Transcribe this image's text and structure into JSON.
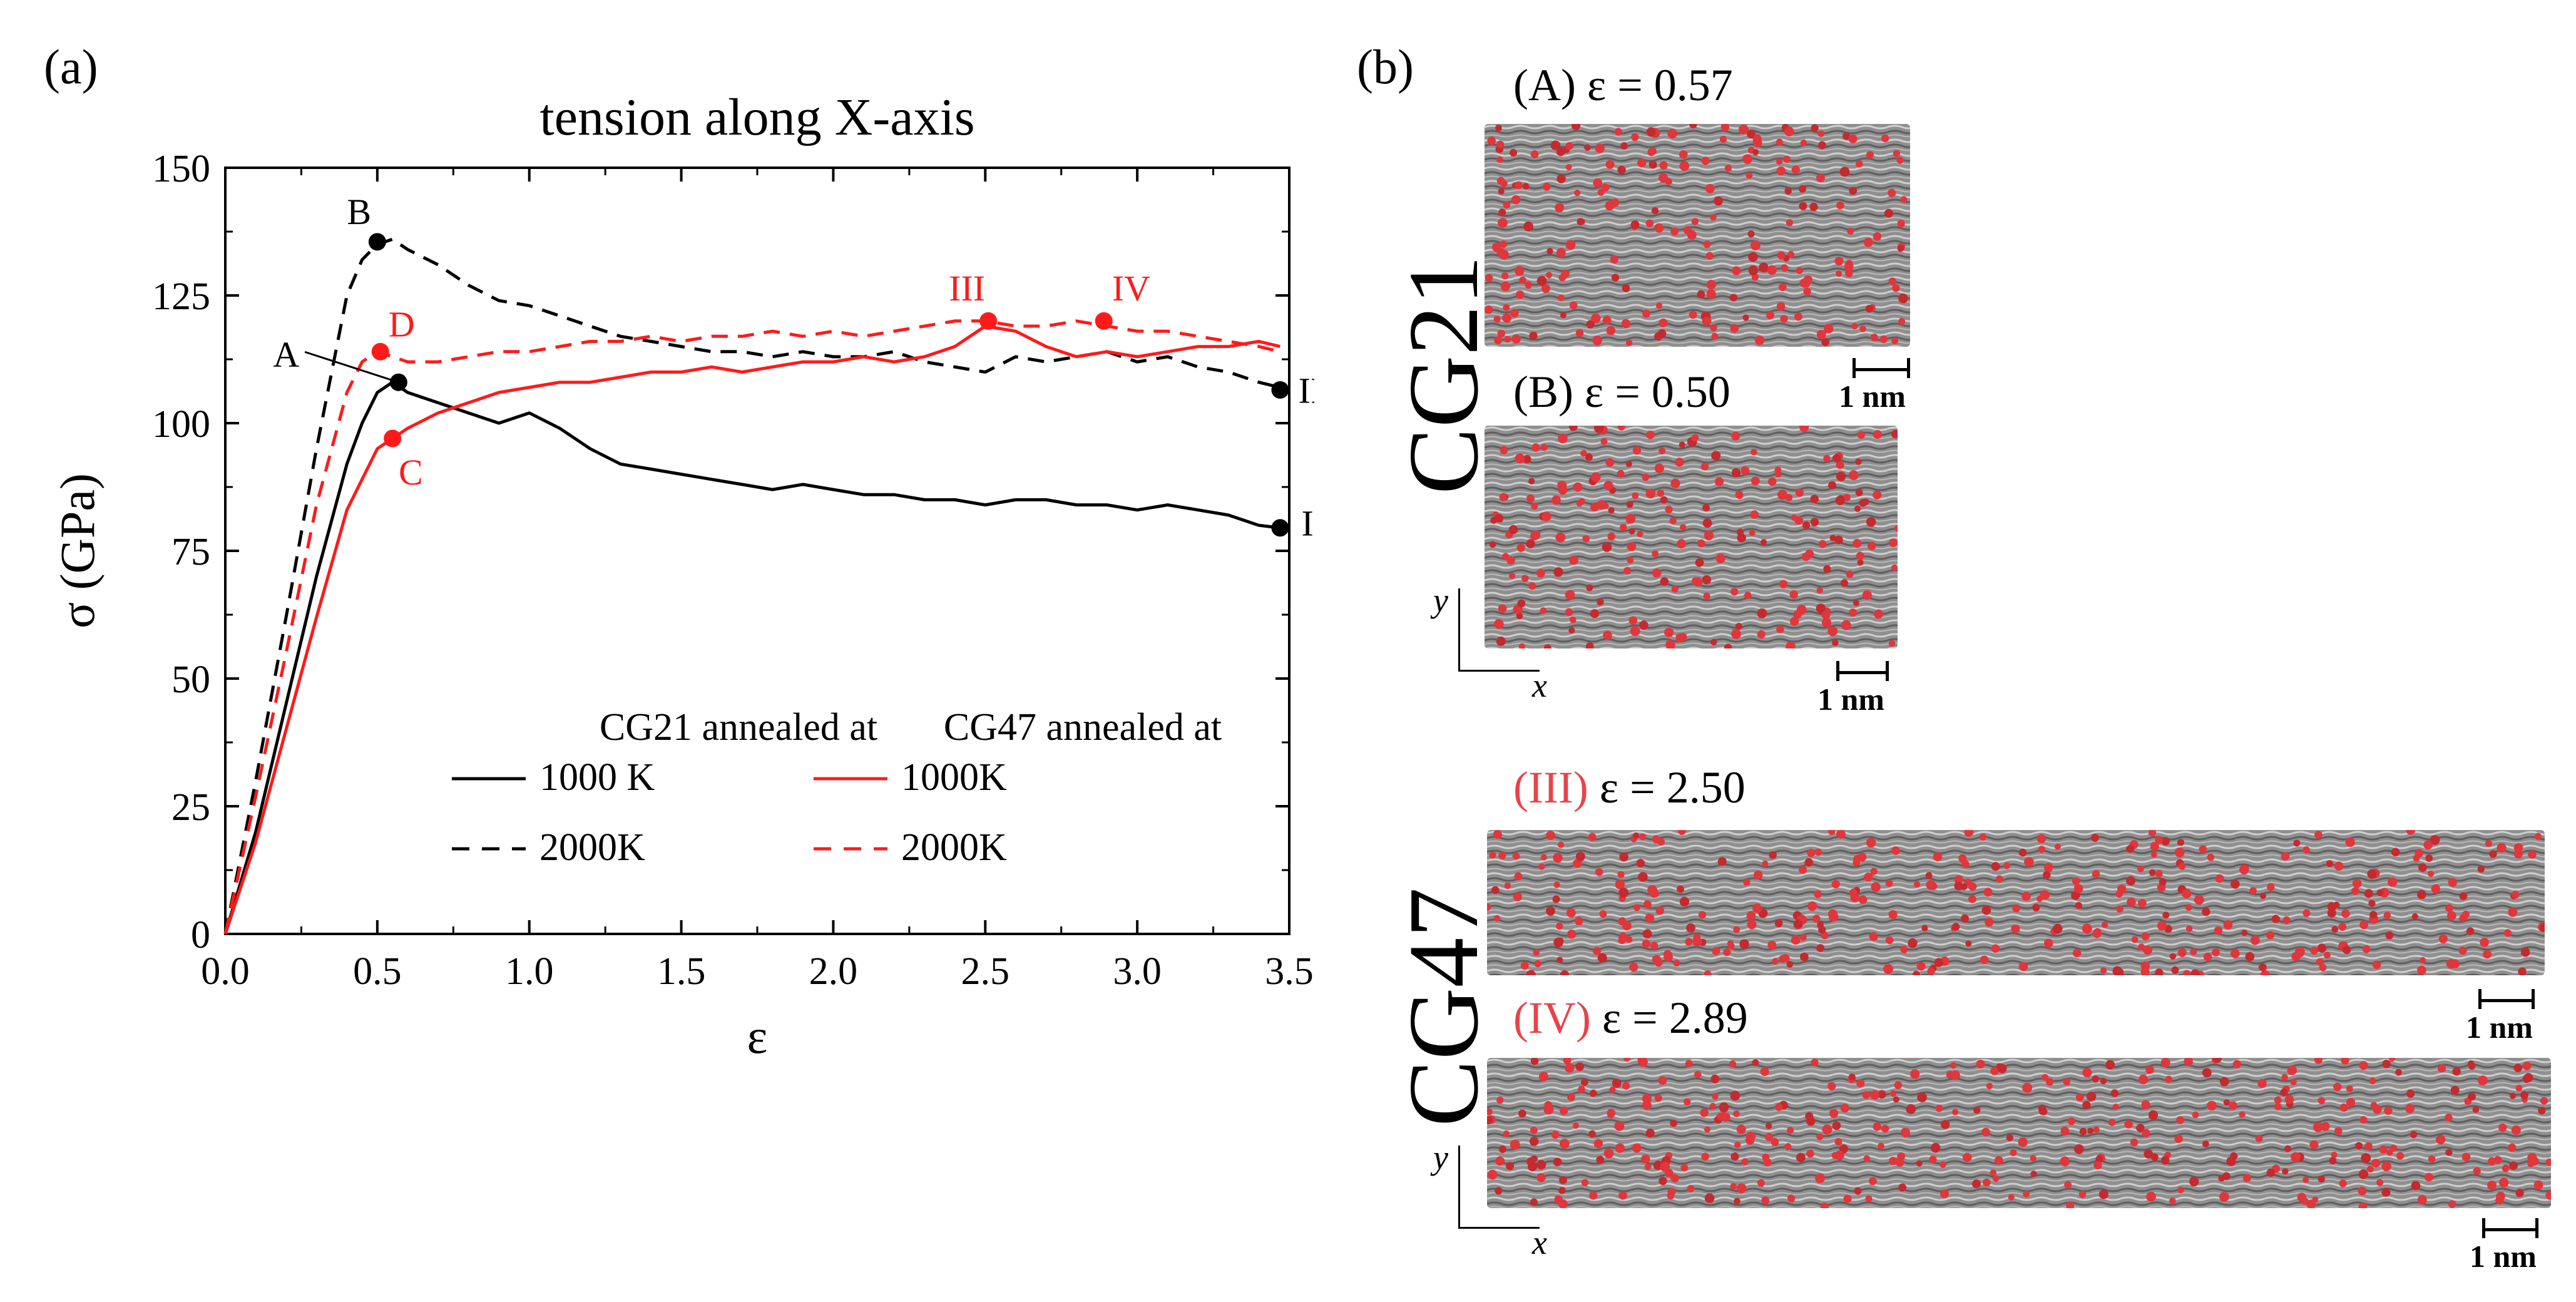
{
  "panel_a": {
    "tag": "(a)",
    "chart_data": {
      "type": "line",
      "title": "tension along X-axis",
      "xlabel": "ε",
      "ylabel": "σ (GPa)",
      "xlim": [
        0.0,
        3.5
      ],
      "ylim": [
        0,
        150
      ],
      "xticks": [
        "0.0",
        "0.5",
        "1.0",
        "1.5",
        "2.0",
        "2.5",
        "3.0",
        "3.5"
      ],
      "yticks": [
        "0",
        "25",
        "50",
        "75",
        "100",
        "125",
        "150"
      ],
      "legend": {
        "placement": "lower-center",
        "groups": [
          {
            "title": "CG21 annealed at",
            "entries": [
              "1000 K",
              "2000K"
            ]
          },
          {
            "title": "CG47 annealed at",
            "entries": [
              "1000K",
              "2000K"
            ]
          }
        ]
      },
      "series": [
        {
          "name": "1000 K",
          "group": "CG21",
          "color": "#000000",
          "dash": "solid",
          "x": [
            0,
            0.1,
            0.2,
            0.3,
            0.4,
            0.45,
            0.5,
            0.55,
            0.6,
            0.7,
            0.8,
            0.9,
            1.0,
            1.1,
            1.2,
            1.3,
            1.4,
            1.5,
            1.6,
            1.7,
            1.8,
            1.9,
            2.0,
            2.1,
            2.2,
            2.3,
            2.4,
            2.5,
            2.6,
            2.7,
            2.8,
            2.9,
            3.0,
            3.1,
            3.2,
            3.3,
            3.4,
            3.47
          ],
          "y": [
            0,
            20,
            45,
            70,
            92,
            100,
            106,
            108,
            106,
            104,
            102,
            100,
            102,
            99,
            95,
            92,
            91,
            90,
            89,
            88,
            87,
            88,
            87,
            86,
            86,
            85,
            85,
            84,
            85,
            85,
            84,
            84,
            83,
            84,
            83,
            82,
            80,
            79.5
          ]
        },
        {
          "name": "2000K",
          "group": "CG21",
          "color": "#000000",
          "dash": "dashed",
          "x": [
            0,
            0.1,
            0.2,
            0.3,
            0.4,
            0.45,
            0.5,
            0.55,
            0.6,
            0.7,
            0.8,
            0.9,
            1.0,
            1.1,
            1.2,
            1.3,
            1.4,
            1.5,
            1.6,
            1.7,
            1.8,
            1.9,
            2.0,
            2.1,
            2.2,
            2.3,
            2.4,
            2.5,
            2.6,
            2.7,
            2.8,
            2.9,
            3.0,
            3.1,
            3.2,
            3.3,
            3.4,
            3.47
          ],
          "y": [
            0,
            30,
            62,
            95,
            125,
            132,
            135,
            136,
            134,
            131,
            127,
            124,
            123,
            121,
            119,
            117,
            116,
            115,
            114,
            114,
            113,
            114,
            113,
            113,
            114,
            112,
            111,
            110,
            113,
            112,
            113,
            114,
            112,
            113,
            111,
            110,
            108,
            107
          ]
        },
        {
          "name": "1000K",
          "group": "CG47",
          "color": "#ff1a1a",
          "dash": "solid",
          "x": [
            0,
            0.1,
            0.2,
            0.3,
            0.4,
            0.5,
            0.55,
            0.6,
            0.7,
            0.8,
            0.9,
            1.0,
            1.1,
            1.2,
            1.3,
            1.4,
            1.5,
            1.6,
            1.7,
            1.8,
            1.9,
            2.0,
            2.1,
            2.2,
            2.3,
            2.4,
            2.5,
            2.6,
            2.7,
            2.8,
            2.9,
            3.0,
            3.1,
            3.2,
            3.3,
            3.4,
            3.47
          ],
          "y": [
            0,
            18,
            40,
            62,
            83,
            95,
            97,
            99,
            102,
            104,
            106,
            107,
            108,
            108,
            109,
            110,
            110,
            111,
            110,
            111,
            112,
            112,
            113,
            112,
            113,
            115,
            119,
            118,
            115,
            113,
            114,
            113,
            114,
            115,
            115,
            116,
            115
          ]
        },
        {
          "name": "2000K",
          "group": "CG47",
          "color": "#ff1a1a",
          "dash": "dashed",
          "x": [
            0,
            0.1,
            0.2,
            0.3,
            0.4,
            0.45,
            0.5,
            0.55,
            0.6,
            0.7,
            0.8,
            0.9,
            1.0,
            1.1,
            1.2,
            1.3,
            1.4,
            1.5,
            1.6,
            1.7,
            1.8,
            1.9,
            2.0,
            2.1,
            2.2,
            2.3,
            2.4,
            2.5,
            2.6,
            2.7,
            2.8,
            2.9,
            3.0,
            3.1,
            3.2,
            3.3,
            3.4,
            3.47
          ],
          "y": [
            0,
            27,
            55,
            84,
            106,
            112,
            114,
            113,
            112,
            112,
            113,
            114,
            114,
            115,
            116,
            116,
            117,
            116,
            117,
            117,
            118,
            117,
            118,
            117,
            118,
            119,
            120,
            120,
            119,
            119,
            120,
            119,
            118,
            118,
            117,
            116,
            115,
            114
          ]
        }
      ],
      "markers": [
        {
          "label": "A",
          "x": 0.57,
          "y": 108,
          "color": "#000000",
          "label_x": 0.2,
          "label_y": 111,
          "leader": true
        },
        {
          "label": "B",
          "x": 0.5,
          "y": 135.5,
          "color": "#000000",
          "label_x": 0.44,
          "label_y": 139
        },
        {
          "label": "C",
          "x": 0.55,
          "y": 97,
          "color": "#ff1a1a",
          "label_x": 0.61,
          "label_y": 88
        },
        {
          "label": "D",
          "x": 0.51,
          "y": 114,
          "color": "#ff1a1a",
          "label_x": 0.58,
          "label_y": 117
        },
        {
          "label": "I",
          "x": 3.47,
          "y": 79.5,
          "color": "#000000",
          "label_x": 3.56,
          "label_y": 78
        },
        {
          "label": "II",
          "x": 3.47,
          "y": 106.5,
          "color": "#000000",
          "label_x": 3.57,
          "label_y": 104
        },
        {
          "label": "III",
          "x": 2.51,
          "y": 120,
          "color": "#ff1a1a",
          "label_x": 2.44,
          "label_y": 124
        },
        {
          "label": "IV",
          "x": 2.89,
          "y": 120,
          "color": "#ff1a1a",
          "label_x": 2.98,
          "label_y": 124
        }
      ]
    }
  },
  "panel_b": {
    "tag": "(b)",
    "groups": {
      "top": "CG21",
      "bottom": "CG47"
    },
    "snapshots": [
      {
        "id": "A",
        "label": "(A)",
        "strain": "ε = 0.57",
        "label_color": "#000000"
      },
      {
        "id": "B",
        "label": "(B)",
        "strain": "ε = 0.50",
        "label_color": "#000000"
      },
      {
        "id": "III",
        "label": "(III)",
        "strain": "ε = 2.50",
        "label_color": "#e8434a"
      },
      {
        "id": "IV",
        "label": "(IV)",
        "strain": "ε = 2.89",
        "label_color": "#e8434a"
      }
    ],
    "scale_bar": "1 nm",
    "axes": {
      "x": "x",
      "y": "y"
    }
  }
}
